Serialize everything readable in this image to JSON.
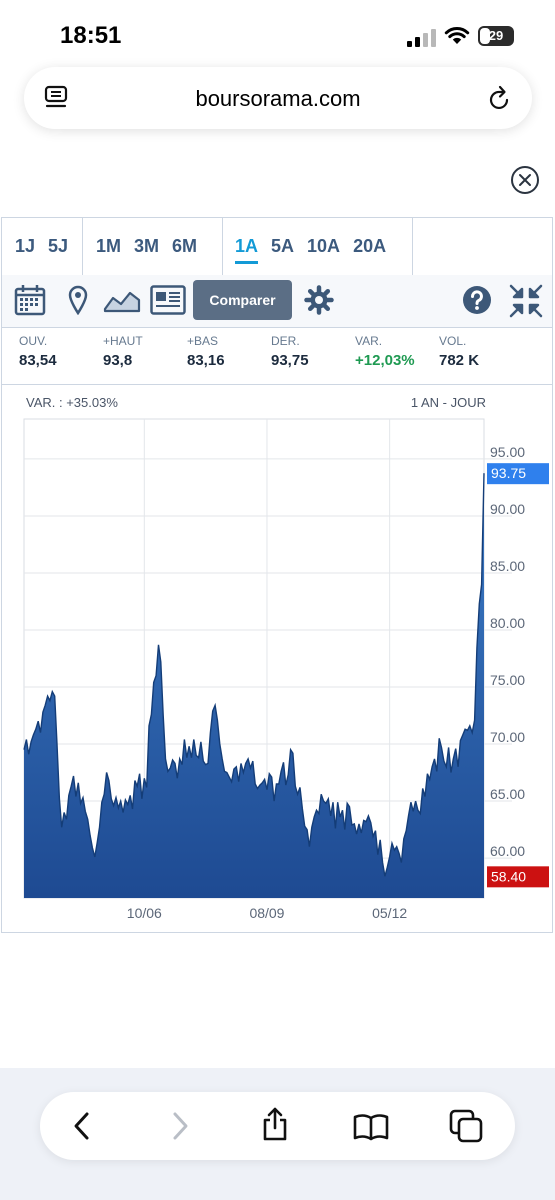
{
  "status": {
    "time": "18:51",
    "battery": "29"
  },
  "browser": {
    "url": "boursorama.com"
  },
  "periods": {
    "group1": [
      "1J",
      "5J"
    ],
    "group2": [
      "1M",
      "3M",
      "6M"
    ],
    "group3": [
      "1A",
      "5A",
      "10A",
      "20A"
    ],
    "active": "1A"
  },
  "toolbar": {
    "compare_label": "Comparer"
  },
  "quote": [
    {
      "label": "OUV.",
      "value": "83,54"
    },
    {
      "label": "+HAUT",
      "value": "93,8"
    },
    {
      "label": "+BAS",
      "value": "83,16"
    },
    {
      "label": "DER.",
      "value": "93,75"
    },
    {
      "label": "VAR.",
      "value": "+12,03%"
    },
    {
      "label": "VOL.",
      "value": "782 K"
    }
  ],
  "chart": {
    "var_label": "VAR. : +35.03%",
    "range_label": "1 AN - JOUR"
  },
  "chart_data": {
    "type": "area",
    "title": "",
    "xlabel": "",
    "ylabel": "",
    "ylim": [
      56.5,
      98.5
    ],
    "ytick_labels": [
      "95.00",
      "90.00",
      "85.00",
      "80.00",
      "75.00",
      "70.00",
      "65.00",
      "60.00"
    ],
    "ytick_values": [
      95,
      90,
      85,
      80,
      75,
      70,
      65,
      60
    ],
    "xtick_labels": [
      "10/06",
      "08/09",
      "05/12"
    ],
    "xtick_index": [
      51,
      103,
      155
    ],
    "last_value_label": "93.75",
    "min_value_label": "58.40",
    "grid": true,
    "colors": {
      "fill_top": "#3c7cc6",
      "fill_bottom": "#1e4a92",
      "line": "#143d78",
      "last_badge": "#2f80ed",
      "min_badge": "#cc1111"
    },
    "values": [
      69.5,
      70.4,
      69.1,
      70.2,
      70.8,
      71.3,
      72.0,
      71.0,
      72.8,
      73.4,
      74.2,
      73.8,
      74.6,
      74.2,
      70.0,
      65.2,
      62.7,
      64.0,
      63.4,
      65.5,
      66.3,
      67.2,
      65.4,
      66.6,
      64.8,
      65.3,
      64.1,
      63.4,
      62.0,
      60.9,
      60.1,
      61.3,
      62.7,
      64.9,
      65.6,
      67.5,
      66.8,
      65.2,
      64.6,
      65.3,
      64.4,
      65.0,
      64.0,
      65.1,
      64.7,
      65.5,
      64.3,
      66.8,
      66.3,
      67.4,
      65.2,
      67.0,
      66.2,
      71.6,
      72.6,
      75.4,
      76.0,
      78.7,
      77.2,
      72.5,
      68.7,
      67.6,
      67.9,
      68.6,
      68.3,
      67.0,
      68.7,
      68.2,
      70.4,
      68.8,
      69.8,
      68.8,
      70.4,
      69.0,
      68.8,
      70.2,
      68.5,
      68.2,
      68.3,
      71.0,
      72.9,
      73.4,
      72.1,
      70.0,
      68.7,
      67.6,
      67.5,
      67.1,
      66.7,
      67.8,
      68.0,
      66.7,
      68.3,
      67.5,
      68.3,
      68.7,
      67.9,
      68.5,
      66.5,
      66.1,
      66.4,
      66.6,
      66.9,
      66.0,
      67.4,
      67.1,
      65.0,
      66.5,
      66.5,
      67.6,
      68.4,
      66.4,
      67.3,
      69.5,
      69.2,
      66.3,
      65.6,
      66.2,
      64.3,
      62.8,
      62.5,
      61.0,
      62.7,
      63.6,
      64.2,
      63.9,
      65.6,
      65.0,
      64.8,
      65.2,
      63.7,
      64.9,
      62.6,
      64.9,
      63.6,
      64.2,
      62.5,
      64.8,
      64.5,
      62.9,
      63.0,
      62.1,
      63.0,
      62.2,
      63.3,
      63.2,
      63.7,
      63.1,
      61.9,
      62.4,
      60.3,
      61.6,
      59.6,
      58.4,
      59.2,
      60.1,
      61.3,
      60.7,
      61.0,
      60.4,
      59.6,
      61.7,
      62.4,
      63.7,
      64.9,
      64.1,
      65.0,
      64.2,
      63.9,
      66.1,
      65.4,
      67.4,
      66.9,
      68.0,
      68.7,
      67.6,
      70.5,
      69.7,
      68.5,
      68.0,
      69.7,
      67.5,
      68.7,
      69.6,
      68.0,
      70.3,
      70.8,
      71.3,
      71.2,
      71.6,
      71.0,
      72.1,
      78.4,
      82.3,
      84.0,
      93.75
    ]
  }
}
